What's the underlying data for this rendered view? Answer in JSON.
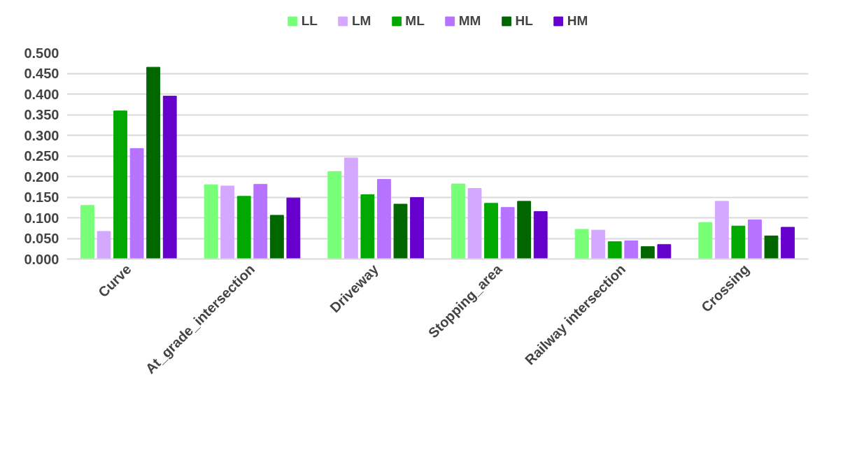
{
  "chart_data": {
    "type": "bar",
    "categories": [
      "Curve",
      "At_grade_intersection",
      "Driveway",
      "Stopping_area",
      "Railway intersection",
      "Crossing"
    ],
    "series": [
      {
        "name": "LL",
        "color": "#77ff77",
        "values": [
          0.13,
          0.18,
          0.212,
          0.182,
          0.072,
          0.088
        ]
      },
      {
        "name": "LM",
        "color": "#d4a8ff",
        "values": [
          0.067,
          0.177,
          0.245,
          0.171,
          0.07,
          0.14
        ]
      },
      {
        "name": "ML",
        "color": "#00a800",
        "values": [
          0.359,
          0.152,
          0.156,
          0.135,
          0.042,
          0.08
        ]
      },
      {
        "name": "MM",
        "color": "#b673ff",
        "values": [
          0.268,
          0.181,
          0.193,
          0.125,
          0.044,
          0.095
        ]
      },
      {
        "name": "HL",
        "color": "#006600",
        "values": [
          0.465,
          0.106,
          0.133,
          0.14,
          0.03,
          0.056
        ]
      },
      {
        "name": "HM",
        "color": "#6600cc",
        "values": [
          0.395,
          0.148,
          0.149,
          0.115,
          0.035,
          0.077
        ]
      }
    ],
    "ylim": [
      0,
      0.5
    ],
    "yticks": [
      {
        "value": 0,
        "label": "0.000"
      },
      {
        "value": 0.05,
        "label": "0.050"
      },
      {
        "value": 0.1,
        "label": "0.100"
      },
      {
        "value": 0.15,
        "label": "0.150"
      },
      {
        "value": 0.2,
        "label": "0.200"
      },
      {
        "value": 0.25,
        "label": "0.250"
      },
      {
        "value": 0.3,
        "label": "0.300"
      },
      {
        "value": 0.35,
        "label": "0.350"
      },
      {
        "value": 0.4,
        "label": "0.400"
      },
      {
        "value": 0.45,
        "label": "0.450"
      },
      {
        "value": 0.5,
        "label": "0.500"
      }
    ],
    "grid": "y",
    "legend": "top"
  }
}
